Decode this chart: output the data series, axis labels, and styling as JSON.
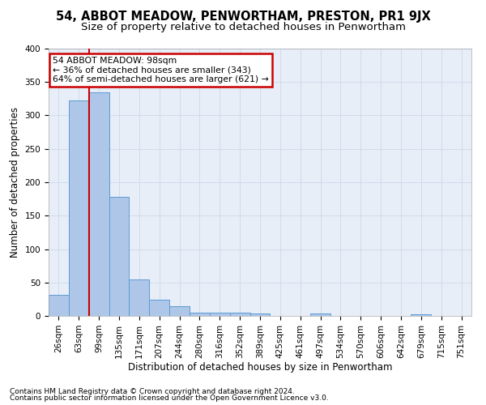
{
  "title": "54, ABBOT MEADOW, PENWORTHAM, PRESTON, PR1 9JX",
  "subtitle": "Size of property relative to detached houses in Penwortham",
  "xlabel": "Distribution of detached houses by size in Penwortham",
  "ylabel": "Number of detached properties",
  "footnote1": "Contains HM Land Registry data © Crown copyright and database right 2024.",
  "footnote2": "Contains public sector information licensed under the Open Government Licence v3.0.",
  "bar_labels": [
    "26sqm",
    "63sqm",
    "99sqm",
    "135sqm",
    "171sqm",
    "207sqm",
    "244sqm",
    "280sqm",
    "316sqm",
    "352sqm",
    "389sqm",
    "425sqm",
    "461sqm",
    "497sqm",
    "534sqm",
    "570sqm",
    "606sqm",
    "642sqm",
    "679sqm",
    "715sqm",
    "751sqm"
  ],
  "bar_values": [
    32,
    323,
    335,
    178,
    55,
    24,
    14,
    5,
    5,
    5,
    4,
    0,
    0,
    4,
    0,
    0,
    0,
    0,
    3,
    0,
    0
  ],
  "bar_color": "#aec6e8",
  "bar_edge_color": "#5b9bd5",
  "annotation_box_text": "54 ABBOT MEADOW: 98sqm\n← 36% of detached houses are smaller (343)\n64% of semi-detached houses are larger (621) →",
  "annotation_box_color": "#ffffff",
  "annotation_box_edge_color": "#cc0000",
  "vline_color": "#cc0000",
  "ylim": [
    0,
    400
  ],
  "yticks": [
    0,
    50,
    100,
    150,
    200,
    250,
    300,
    350,
    400
  ],
  "grid_color": "#cdd8ea",
  "background_color": "#e8eef8",
  "title_fontsize": 10.5,
  "subtitle_fontsize": 9.5,
  "axis_label_fontsize": 8.5,
  "tick_fontsize": 7.5,
  "footnote_fontsize": 6.5
}
